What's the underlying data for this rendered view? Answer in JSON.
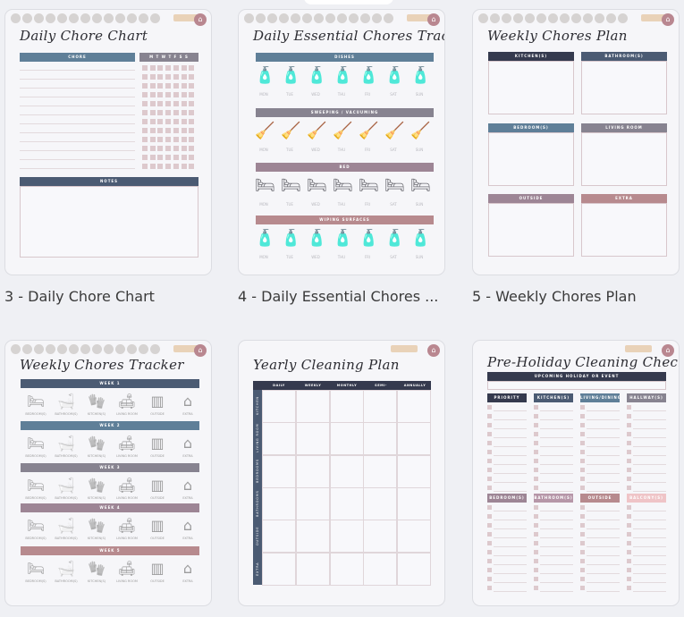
{
  "colors": {
    "navy": "#4b5b73",
    "slate": "#5f7f98",
    "grey": "#878390",
    "mauve": "#9d8595",
    "rose": "#b78a8e",
    "dark": "#353a4e",
    "blush": "#efc4c7",
    "check": "#ddc9cd",
    "home": "#b98790"
  },
  "icons": {
    "home": "home-icon"
  },
  "home_glyph": "⌂",
  "cards": [
    {
      "label": "3 - Daily Chore Chart",
      "title": "Daily Chore Chart",
      "chore_header": "CHORE",
      "days_header": "M T W T F S S",
      "notes_header": "NOTES"
    },
    {
      "label": "4 - Daily Essential Chores ...",
      "title": "Daily Essential Chores Tracker",
      "sections": [
        {
          "name": "DISHES",
          "icon": "dish-soap-icon",
          "glyph": "🧴",
          "color": "#b8797f"
        },
        {
          "name": "SWEEPING / VACUUMING",
          "icon": "broom-icon",
          "glyph": "🧹",
          "color": "#a47a85"
        },
        {
          "name": "BED",
          "icon": "bed-icon",
          "glyph": "🛏",
          "color": "#6b6b72"
        },
        {
          "name": "WIPING SURFACES",
          "icon": "spray-bottle-icon",
          "glyph": "🧴",
          "color": "#4f6f89"
        }
      ],
      "days": [
        "MON",
        "TUE",
        "WED",
        "THU",
        "FRI",
        "SAT",
        "SUN"
      ]
    },
    {
      "label": "5 - Weekly Chores Plan",
      "title": "Weekly Chores Plan",
      "boxes": [
        "KITCHEN(S)",
        "BATHROOM(S)",
        "BEDROOM(S)",
        "LIVING ROOM",
        "OUTSIDE",
        "EXTRA"
      ]
    },
    {
      "title": "Weekly Chores Tracker",
      "weeks": [
        "WEEK 1",
        "WEEK 2",
        "WEEK 3",
        "WEEK 4",
        "WEEK 5"
      ],
      "rooms": [
        "BEDROOM(S)",
        "BATHROOM(S)",
        "KITCHEN(S)",
        "LIVING ROOM",
        "OUTSIDE",
        "EXTRA"
      ]
    },
    {
      "title": "Yearly Cleaning Plan",
      "columns": [
        "DAILY",
        "WEEKLY",
        "MONTHLY",
        "SEMI-ANNUALLY",
        "ANNUALLY"
      ],
      "rows": [
        "KITCHEN",
        "LIVING ROOM",
        "BEDROOMS",
        "BATHROOMS",
        "OUTSIDE",
        "EXTRA"
      ]
    },
    {
      "title": "Pre-Holiday Cleaning Checklist",
      "event_header": "UPCOMING HOLIDAY OR EVENT",
      "lists": [
        "PRIORITY",
        "KITCHEN(S)",
        "LIVING/DINING",
        "HALLWAY(S)",
        "BEDROOM(S)",
        "BATHROOM(S)",
        "OUTSIDE",
        "BALCONY(S)"
      ]
    }
  ]
}
